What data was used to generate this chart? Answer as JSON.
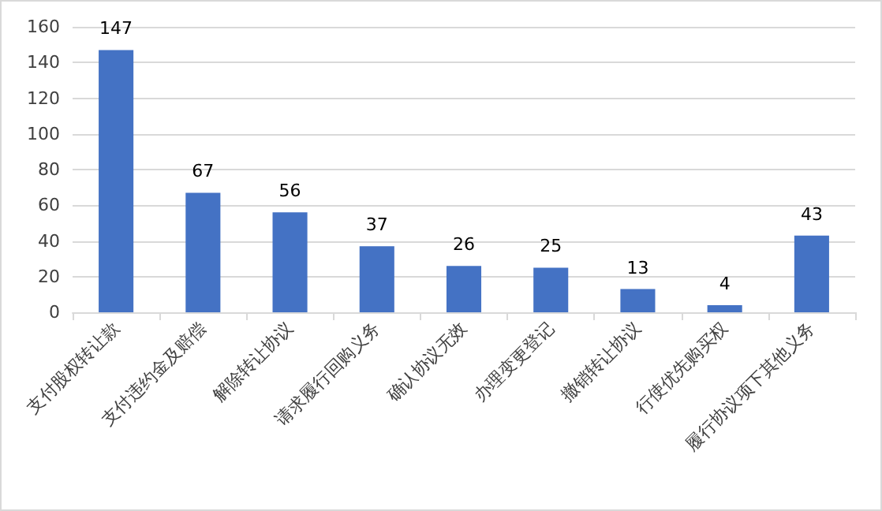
{
  "chart_data": {
    "type": "bar",
    "categories": [
      "支付股权转让款",
      "支付违约金及赔偿",
      "解除转让协议",
      "请求履行回购义务",
      "确认协议无效",
      "办理变更登记",
      "撤销转让协议",
      "行使优先购买权",
      "履行协议项下其他义务"
    ],
    "values": [
      147,
      67,
      56,
      37,
      26,
      25,
      13,
      4,
      43
    ],
    "color": "#4472c4",
    "data_labels": true,
    "ylim": [
      0,
      160
    ],
    "yticks": [
      0,
      20,
      40,
      60,
      80,
      100,
      120,
      140,
      160
    ],
    "grid": "y"
  }
}
